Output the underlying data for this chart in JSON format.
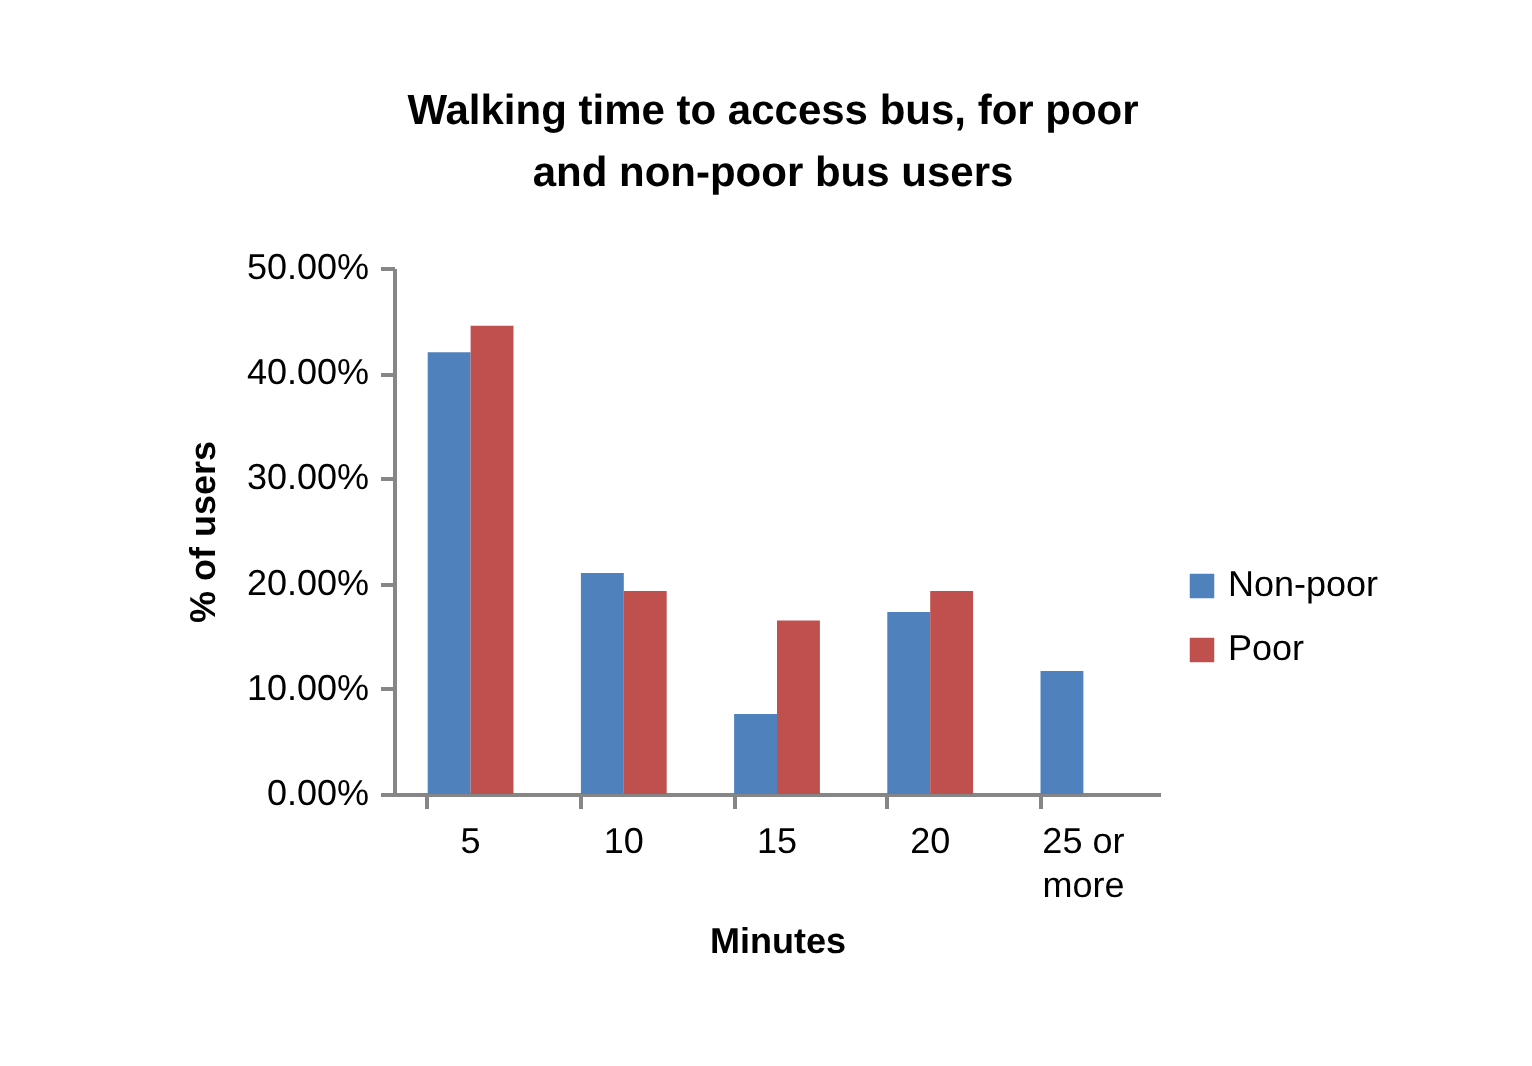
{
  "chart_data": {
    "type": "bar",
    "title": "Walking time to access bus, for poor and non-poor bus users",
    "xlabel": "Minutes",
    "ylabel": "% of users",
    "categories": [
      "5",
      "10",
      "15",
      "20",
      "25 or more"
    ],
    "series": [
      {
        "name": "Non-poor",
        "color": "#4f81bd",
        "values": [
          42.0,
          21.0,
          7.6,
          17.3,
          11.7
        ]
      },
      {
        "name": "Poor",
        "color": "#c0504d",
        "values": [
          44.5,
          19.3,
          16.5,
          19.3,
          null
        ]
      }
    ],
    "ylim": [
      0,
      50
    ],
    "yticks": [
      {
        "value": 0,
        "label": "0.00%"
      },
      {
        "value": 10,
        "label": "10.00%"
      },
      {
        "value": 20,
        "label": "20.00%"
      },
      {
        "value": 30,
        "label": "30.00%"
      },
      {
        "value": 40,
        "label": "40.00%"
      },
      {
        "value": 50,
        "label": "50.00%"
      }
    ],
    "grid": false,
    "legend": "right"
  }
}
